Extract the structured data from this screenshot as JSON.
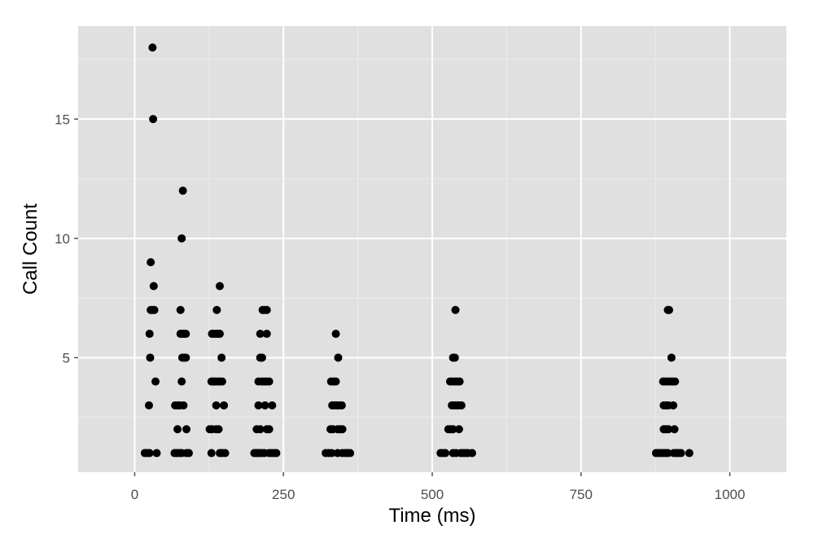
{
  "chart_data": {
    "type": "scatter",
    "title": "",
    "xlabel": "Time (ms)",
    "ylabel": "Call Count",
    "xlim": [
      -95,
      1095
    ],
    "ylim": [
      0.2,
      18.9
    ],
    "x_ticks": [
      0,
      250,
      500,
      750,
      1000
    ],
    "y_ticks": [
      5,
      10,
      15
    ],
    "x_tick_labels": [
      "0",
      "250",
      "500",
      "750",
      "1000"
    ],
    "y_tick_labels": [
      "5",
      "10",
      "15"
    ],
    "grid": true,
    "legend": "none",
    "colors": {
      "panel_background": "#e0e0e0",
      "grid_major": "#ffffff",
      "grid_minor": "#ebebeb",
      "point": "#000000"
    },
    "points": [
      {
        "x": 30,
        "y": 18
      },
      {
        "x": 31,
        "y": 15
      },
      {
        "x": 81,
        "y": 12
      },
      {
        "x": 79,
        "y": 10
      },
      {
        "x": 27,
        "y": 9
      },
      {
        "x": 32,
        "y": 8
      },
      {
        "x": 143,
        "y": 8
      },
      {
        "x": 27,
        "y": 7
      },
      {
        "x": 30,
        "y": 7
      },
      {
        "x": 33,
        "y": 7
      },
      {
        "x": 77,
        "y": 7
      },
      {
        "x": 138,
        "y": 7
      },
      {
        "x": 215,
        "y": 7
      },
      {
        "x": 218,
        "y": 7
      },
      {
        "x": 222,
        "y": 7
      },
      {
        "x": 539,
        "y": 7
      },
      {
        "x": 896,
        "y": 7
      },
      {
        "x": 898,
        "y": 7
      },
      {
        "x": 25,
        "y": 6
      },
      {
        "x": 77,
        "y": 6
      },
      {
        "x": 80,
        "y": 6
      },
      {
        "x": 83,
        "y": 6
      },
      {
        "x": 86,
        "y": 6
      },
      {
        "x": 130,
        "y": 6
      },
      {
        "x": 133,
        "y": 6
      },
      {
        "x": 137,
        "y": 6
      },
      {
        "x": 140,
        "y": 6
      },
      {
        "x": 143,
        "y": 6
      },
      {
        "x": 211,
        "y": 6
      },
      {
        "x": 222,
        "y": 6
      },
      {
        "x": 338,
        "y": 6
      },
      {
        "x": 26,
        "y": 5
      },
      {
        "x": 80,
        "y": 5
      },
      {
        "x": 83,
        "y": 5
      },
      {
        "x": 86,
        "y": 5
      },
      {
        "x": 146,
        "y": 5
      },
      {
        "x": 211,
        "y": 5
      },
      {
        "x": 214,
        "y": 5
      },
      {
        "x": 342,
        "y": 5
      },
      {
        "x": 535,
        "y": 5
      },
      {
        "x": 538,
        "y": 5
      },
      {
        "x": 902,
        "y": 5
      },
      {
        "x": 35,
        "y": 4
      },
      {
        "x": 79,
        "y": 4
      },
      {
        "x": 129,
        "y": 4
      },
      {
        "x": 132,
        "y": 4
      },
      {
        "x": 135,
        "y": 4
      },
      {
        "x": 139,
        "y": 4
      },
      {
        "x": 143,
        "y": 4
      },
      {
        "x": 147,
        "y": 4
      },
      {
        "x": 208,
        "y": 4
      },
      {
        "x": 214,
        "y": 4
      },
      {
        "x": 218,
        "y": 4
      },
      {
        "x": 222,
        "y": 4
      },
      {
        "x": 226,
        "y": 4
      },
      {
        "x": 330,
        "y": 4
      },
      {
        "x": 334,
        "y": 4
      },
      {
        "x": 338,
        "y": 4
      },
      {
        "x": 530,
        "y": 4
      },
      {
        "x": 534,
        "y": 4
      },
      {
        "x": 538,
        "y": 4
      },
      {
        "x": 542,
        "y": 4
      },
      {
        "x": 546,
        "y": 4
      },
      {
        "x": 888,
        "y": 4
      },
      {
        "x": 892,
        "y": 4
      },
      {
        "x": 896,
        "y": 4
      },
      {
        "x": 900,
        "y": 4
      },
      {
        "x": 904,
        "y": 4
      },
      {
        "x": 908,
        "y": 4
      },
      {
        "x": 24,
        "y": 3
      },
      {
        "x": 68,
        "y": 3
      },
      {
        "x": 72,
        "y": 3
      },
      {
        "x": 76,
        "y": 3
      },
      {
        "x": 82,
        "y": 3
      },
      {
        "x": 137,
        "y": 3
      },
      {
        "x": 150,
        "y": 3
      },
      {
        "x": 208,
        "y": 3
      },
      {
        "x": 219,
        "y": 3
      },
      {
        "x": 231,
        "y": 3
      },
      {
        "x": 332,
        "y": 3
      },
      {
        "x": 336,
        "y": 3
      },
      {
        "x": 340,
        "y": 3
      },
      {
        "x": 344,
        "y": 3
      },
      {
        "x": 348,
        "y": 3
      },
      {
        "x": 533,
        "y": 3
      },
      {
        "x": 537,
        "y": 3
      },
      {
        "x": 541,
        "y": 3
      },
      {
        "x": 545,
        "y": 3
      },
      {
        "x": 549,
        "y": 3
      },
      {
        "x": 889,
        "y": 3
      },
      {
        "x": 893,
        "y": 3
      },
      {
        "x": 897,
        "y": 3
      },
      {
        "x": 905,
        "y": 3
      },
      {
        "x": 72,
        "y": 2
      },
      {
        "x": 87,
        "y": 2
      },
      {
        "x": 126,
        "y": 2
      },
      {
        "x": 130,
        "y": 2
      },
      {
        "x": 137,
        "y": 2
      },
      {
        "x": 141,
        "y": 2
      },
      {
        "x": 205,
        "y": 2
      },
      {
        "x": 211,
        "y": 2
      },
      {
        "x": 222,
        "y": 2
      },
      {
        "x": 226,
        "y": 2
      },
      {
        "x": 329,
        "y": 2
      },
      {
        "x": 333,
        "y": 2
      },
      {
        "x": 341,
        "y": 2
      },
      {
        "x": 345,
        "y": 2
      },
      {
        "x": 349,
        "y": 2
      },
      {
        "x": 527,
        "y": 2
      },
      {
        "x": 531,
        "y": 2
      },
      {
        "x": 535,
        "y": 2
      },
      {
        "x": 545,
        "y": 2
      },
      {
        "x": 889,
        "y": 2
      },
      {
        "x": 893,
        "y": 2
      },
      {
        "x": 897,
        "y": 2
      },
      {
        "x": 907,
        "y": 2
      },
      {
        "x": 17,
        "y": 1
      },
      {
        "x": 21,
        "y": 1
      },
      {
        "x": 25,
        "y": 1
      },
      {
        "x": 37,
        "y": 1
      },
      {
        "x": 67,
        "y": 1
      },
      {
        "x": 71,
        "y": 1
      },
      {
        "x": 75,
        "y": 1
      },
      {
        "x": 79,
        "y": 1
      },
      {
        "x": 87,
        "y": 1
      },
      {
        "x": 91,
        "y": 1
      },
      {
        "x": 129,
        "y": 1
      },
      {
        "x": 143,
        "y": 1
      },
      {
        "x": 147,
        "y": 1
      },
      {
        "x": 152,
        "y": 1
      },
      {
        "x": 201,
        "y": 1
      },
      {
        "x": 204,
        "y": 1
      },
      {
        "x": 207,
        "y": 1
      },
      {
        "x": 210,
        "y": 1
      },
      {
        "x": 214,
        "y": 1
      },
      {
        "x": 218,
        "y": 1
      },
      {
        "x": 226,
        "y": 1
      },
      {
        "x": 230,
        "y": 1
      },
      {
        "x": 234,
        "y": 1
      },
      {
        "x": 238,
        "y": 1
      },
      {
        "x": 321,
        "y": 1
      },
      {
        "x": 326,
        "y": 1
      },
      {
        "x": 331,
        "y": 1
      },
      {
        "x": 341,
        "y": 1
      },
      {
        "x": 349,
        "y": 1
      },
      {
        "x": 354,
        "y": 1
      },
      {
        "x": 358,
        "y": 1
      },
      {
        "x": 362,
        "y": 1
      },
      {
        "x": 514,
        "y": 1
      },
      {
        "x": 518,
        "y": 1
      },
      {
        "x": 522,
        "y": 1
      },
      {
        "x": 535,
        "y": 1
      },
      {
        "x": 540,
        "y": 1
      },
      {
        "x": 548,
        "y": 1
      },
      {
        "x": 552,
        "y": 1
      },
      {
        "x": 556,
        "y": 1
      },
      {
        "x": 560,
        "y": 1
      },
      {
        "x": 567,
        "y": 1
      },
      {
        "x": 876,
        "y": 1
      },
      {
        "x": 880,
        "y": 1
      },
      {
        "x": 884,
        "y": 1
      },
      {
        "x": 888,
        "y": 1
      },
      {
        "x": 892,
        "y": 1
      },
      {
        "x": 896,
        "y": 1
      },
      {
        "x": 906,
        "y": 1
      },
      {
        "x": 910,
        "y": 1
      },
      {
        "x": 914,
        "y": 1
      },
      {
        "x": 918,
        "y": 1
      },
      {
        "x": 932,
        "y": 1
      }
    ]
  }
}
